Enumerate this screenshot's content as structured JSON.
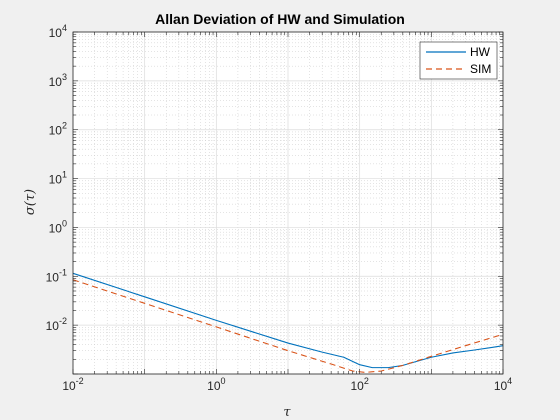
{
  "chart_data": {
    "type": "line",
    "title": "Allan Deviation of HW and Simulation",
    "xlabel": "τ",
    "ylabel": "σ(τ)",
    "xscale": "log",
    "yscale": "log",
    "xlim": [
      0.01,
      10000
    ],
    "ylim": [
      0.001,
      10000
    ],
    "grid": true,
    "minor_grid": true,
    "legend_position": "top-right",
    "x_ticks": [
      {
        "value": 0.01,
        "base": "10",
        "exp": "-2"
      },
      {
        "value": 1,
        "base": "10",
        "exp": "0"
      },
      {
        "value": 100,
        "base": "10",
        "exp": "2"
      },
      {
        "value": 10000,
        "base": "10",
        "exp": "4"
      }
    ],
    "y_ticks": [
      {
        "value": 0.01,
        "base": "10",
        "exp": "-2"
      },
      {
        "value": 0.1,
        "base": "10",
        "exp": "-1"
      },
      {
        "value": 1,
        "base": "10",
        "exp": "0"
      },
      {
        "value": 10,
        "base": "10",
        "exp": "1"
      },
      {
        "value": 100,
        "base": "10",
        "exp": "2"
      },
      {
        "value": 1000,
        "base": "10",
        "exp": "3"
      },
      {
        "value": 10000,
        "base": "10",
        "exp": "4"
      }
    ],
    "series": [
      {
        "name": "HW",
        "color": "#0072BD",
        "dash": "solid",
        "x": [
          0.01,
          0.1,
          1,
          10,
          30,
          60,
          100,
          150,
          250,
          400,
          700,
          1000,
          2000,
          4000,
          7000,
          10000
        ],
        "y": [
          0.115,
          0.038,
          0.0125,
          0.0043,
          0.0028,
          0.0022,
          0.00155,
          0.00135,
          0.00135,
          0.0015,
          0.0019,
          0.0022,
          0.0027,
          0.0031,
          0.0035,
          0.0038
        ]
      },
      {
        "name": "SIM",
        "color": "#D95319",
        "dash": "dashed",
        "x": [
          0.01,
          0.1,
          1,
          10,
          40,
          80,
          120,
          200,
          400,
          1000,
          3000,
          10000
        ],
        "y": [
          0.085,
          0.028,
          0.0092,
          0.003,
          0.0016,
          0.00115,
          0.00108,
          0.00115,
          0.0015,
          0.0023,
          0.0038,
          0.0065
        ]
      }
    ]
  }
}
